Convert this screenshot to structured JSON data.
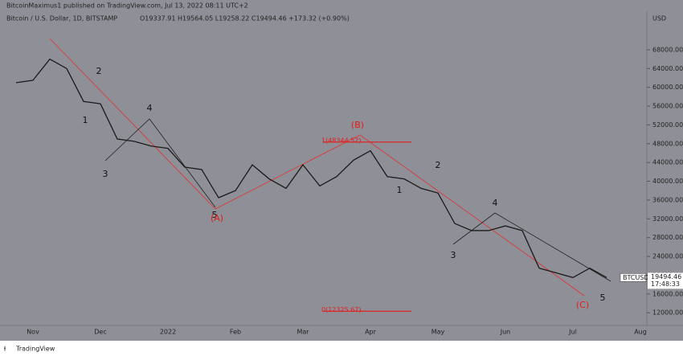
{
  "header": {
    "publisher": "BitcoinMaximus1 published on TradingView.com, Jul 13, 2022 08:11 UTC+2",
    "symbol": "Bitcoin / U.S. Dollar, 1D, BITSTAMP",
    "ohlc": "O19337.91 H19564.05 L19258.22 C19494.46 +173.32 (+0.90%)"
  },
  "footer": {
    "brand": "TradingView"
  },
  "chart_data": {
    "type": "line",
    "y_axis_label": "USD",
    "categories": [
      null,
      "Nov",
      null,
      null,
      null,
      "Dec",
      null,
      null,
      null,
      "2022",
      null,
      null,
      null,
      "Feb",
      null,
      null,
      null,
      "Mar",
      null,
      null,
      null,
      "Apr",
      null,
      null,
      null,
      "May",
      null,
      null,
      null,
      "Jun",
      null,
      null,
      null,
      "Jul",
      null,
      null,
      null,
      "Aug"
    ],
    "series": [
      {
        "name": "BTCUSD",
        "color": "#1a1a1a",
        "values": [
          61000,
          61500,
          66000,
          64000,
          57000,
          56500,
          49000,
          48500,
          47500,
          47000,
          43000,
          42500,
          36500,
          38000,
          43500,
          40500,
          38500,
          43500,
          39000,
          41000,
          44500,
          46500,
          41000,
          40500,
          38500,
          37500,
          31000,
          29500,
          29500,
          30500,
          29500,
          21500,
          20500,
          19500,
          21500,
          19494.46,
          null,
          null
        ]
      }
    ],
    "last_price": 19494.46,
    "countdown": "17:48:33",
    "ylim": [
      9300,
      76200
    ],
    "yticks": [
      {
        "value": 12000,
        "label": "12000.00"
      },
      {
        "value": 16000,
        "label": "16000.00"
      },
      {
        "value": 20000,
        "label": "20000.00"
      },
      {
        "value": 24000,
        "label": "24000.00"
      },
      {
        "value": 28000,
        "label": "28000.00"
      },
      {
        "value": 32000,
        "label": "32000.00"
      },
      {
        "value": 36000,
        "label": "36000.00"
      },
      {
        "value": 40000,
        "label": "40000.00"
      },
      {
        "value": 44000,
        "label": "44000.00"
      },
      {
        "value": 48000,
        "label": "48000.00"
      },
      {
        "value": 52000,
        "label": "52000.00"
      },
      {
        "value": 56000,
        "label": "56000.00"
      },
      {
        "value": 60000,
        "label": "60000.00"
      },
      {
        "value": 64000,
        "label": "64000.00"
      },
      {
        "value": 68000,
        "label": "68000.00"
      }
    ],
    "fib_levels": [
      {
        "value": 48344.52,
        "label": "1(48344.52)",
        "color": "#e31b1b"
      },
      {
        "value": 12325.67,
        "label": "0(12325.67)",
        "color": "#e31b1b"
      }
    ],
    "wave_labels": [
      {
        "label": "1",
        "color": "#111"
      },
      {
        "label": "2",
        "color": "#111"
      },
      {
        "label": "3",
        "color": "#111"
      },
      {
        "label": "4",
        "color": "#111"
      },
      {
        "label": "5",
        "color": "#111"
      },
      {
        "label": "(A)",
        "color": "#e31b1b"
      },
      {
        "label": "(B)",
        "color": "#e31b1b"
      },
      {
        "label": "1",
        "color": "#111"
      },
      {
        "label": "2",
        "color": "#111"
      },
      {
        "label": "3",
        "color": "#111"
      },
      {
        "label": "4",
        "color": "#111"
      },
      {
        "label": "(C)",
        "color": "#e31b1b"
      },
      {
        "label": "5",
        "color": "#111"
      }
    ]
  }
}
